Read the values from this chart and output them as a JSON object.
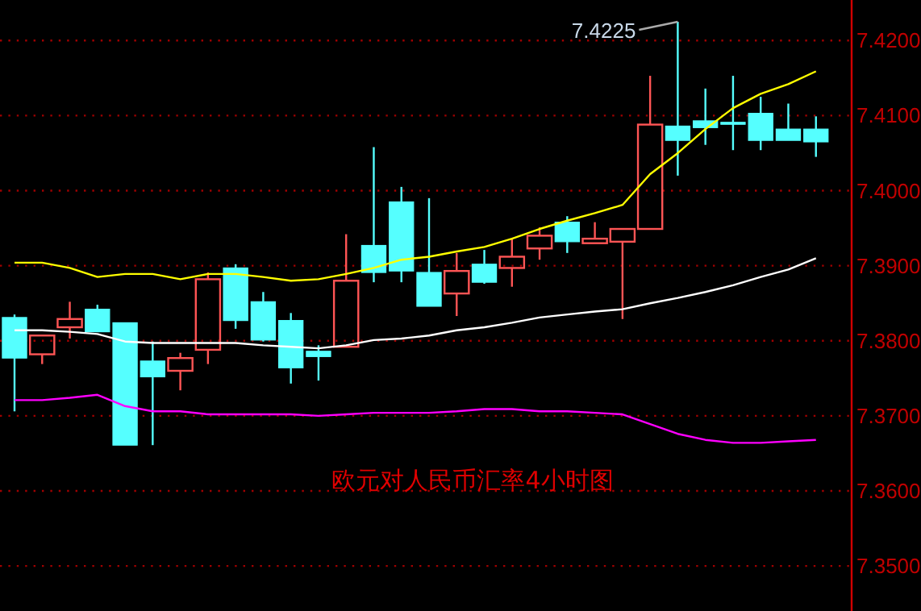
{
  "chart_data": {
    "type": "candlestick",
    "title": "欧元对人民币汇率4小时图",
    "categories": [
      null,
      null,
      null,
      null,
      null,
      null,
      null,
      null,
      null,
      null,
      null,
      null,
      null,
      null,
      null,
      null,
      null,
      null,
      null,
      null,
      null,
      null,
      null,
      null,
      null,
      null,
      null,
      null,
      null,
      null
    ],
    "ohlc": [
      [
        7.3831,
        7.3835,
        7.3706,
        7.3777
      ],
      [
        7.3782,
        7.3807,
        7.3769,
        7.3807
      ],
      [
        7.3818,
        7.3852,
        7.3803,
        7.3829
      ],
      [
        7.3842,
        7.3848,
        7.3812,
        7.3812
      ],
      [
        7.3824,
        7.3824,
        7.3661,
        7.3661
      ],
      [
        7.3773,
        7.3799,
        7.3661,
        7.3752
      ],
      [
        7.376,
        7.3784,
        7.3734,
        7.3777
      ],
      [
        7.3788,
        7.3891,
        7.3769,
        7.3882
      ],
      [
        7.3897,
        7.3902,
        7.3816,
        7.3827
      ],
      [
        7.3852,
        7.3865,
        7.3799,
        7.3801
      ],
      [
        7.3827,
        7.3837,
        7.3743,
        7.3764
      ],
      [
        7.3786,
        7.3794,
        7.3747,
        7.3779
      ],
      [
        7.3792,
        7.3942,
        7.3792,
        7.388
      ],
      [
        7.3927,
        7.4058,
        7.3878,
        7.3891
      ],
      [
        7.3985,
        7.4005,
        7.3878,
        7.3893
      ],
      [
        7.3891,
        7.399,
        7.3846,
        7.3846
      ],
      [
        7.3863,
        7.3917,
        7.3833,
        7.3893
      ],
      [
        7.3902,
        7.3921,
        7.3876,
        7.3878
      ],
      [
        7.3897,
        7.3936,
        7.3872,
        7.3912
      ],
      [
        7.3923,
        7.3951,
        7.3908,
        7.394
      ],
      [
        7.3958,
        7.3966,
        7.3917,
        7.3932
      ],
      [
        7.393,
        7.3958,
        7.393,
        7.3936
      ],
      [
        7.3932,
        7.3949,
        7.3829,
        7.3949
      ],
      [
        7.3949,
        7.4153,
        7.3949,
        7.4088
      ],
      [
        7.4086,
        7.4225,
        7.402,
        7.4067
      ],
      [
        7.4093,
        7.4136,
        7.4061,
        7.4084
      ],
      [
        7.4091,
        7.4153,
        7.4054,
        7.409
      ],
      [
        7.4103,
        7.4125,
        7.4054,
        7.4067
      ],
      [
        7.4082,
        7.4116,
        7.4067,
        7.4067
      ],
      [
        7.4082,
        7.4099,
        7.4045,
        7.4065
      ]
    ],
    "colors": [
      "#55ffff",
      "#ff5555",
      "#ff5555",
      "#55ffff",
      "#55ffff",
      "#55ffff",
      "#ff5555",
      "#ff5555",
      "#55ffff",
      "#55ffff",
      "#55ffff",
      "#55ffff",
      "#ff5555",
      "#55ffff",
      "#55ffff",
      "#55ffff",
      "#ff5555",
      "#55ffff",
      "#ff5555",
      "#ff5555",
      "#55ffff",
      "#ff5555",
      "#ff5555",
      "#ff5555",
      "#55ffff",
      "#55ffff",
      "#55ffff",
      "#55ffff",
      "#55ffff",
      "#55ffff"
    ],
    "series": [
      {
        "type": "line",
        "color": "#ffff00",
        "values": [
          7.3904,
          7.3904,
          7.3897,
          7.3885,
          7.3889,
          7.3889,
          7.3882,
          7.3889,
          7.3889,
          7.3885,
          7.388,
          7.3882,
          7.3889,
          7.3897,
          7.3908,
          7.3912,
          7.3919,
          7.3925,
          7.3936,
          7.3949,
          7.396,
          7.397,
          7.3981,
          7.4022,
          7.405,
          7.4082,
          7.411,
          7.4129,
          7.4142,
          7.4159
        ]
      },
      {
        "type": "line",
        "color": "#ffffff",
        "values": [
          7.3814,
          7.3814,
          7.3812,
          7.3809,
          7.3799,
          7.3797,
          7.3797,
          7.3797,
          7.3797,
          7.3794,
          7.3792,
          7.379,
          7.3794,
          7.3801,
          7.3803,
          7.3807,
          7.3814,
          7.3818,
          7.3824,
          7.3831,
          7.3835,
          7.3839,
          7.3842,
          7.385,
          7.3857,
          7.3865,
          7.3874,
          7.3885,
          7.3895,
          7.391
        ]
      },
      {
        "type": "line",
        "color": "#ff00ff",
        "values": [
          7.3721,
          7.3721,
          7.3724,
          7.3728,
          7.3713,
          7.3706,
          7.3706,
          7.3702,
          7.3702,
          7.3702,
          7.3702,
          7.37,
          7.3702,
          7.3704,
          7.3704,
          7.3704,
          7.3706,
          7.3709,
          7.3709,
          7.3706,
          7.3706,
          7.3704,
          7.3702,
          7.3689,
          7.3676,
          7.3668,
          7.3664,
          7.3664,
          7.3666,
          7.3668
        ]
      }
    ],
    "annotations": [
      "7.4225"
    ],
    "ylim": [
      7.344,
      7.4254
    ],
    "yticks": [
      {
        "value": 7.35,
        "label": "7.3500"
      },
      {
        "value": 7.36,
        "label": "7.3600"
      },
      {
        "value": 7.37,
        "label": "7.3700"
      },
      {
        "value": 7.38,
        "label": "7.3800"
      },
      {
        "value": 7.39,
        "label": "7.3900"
      },
      {
        "value": 7.4,
        "label": "7.4000"
      },
      {
        "value": 7.41,
        "label": "7.4100"
      },
      {
        "value": 7.42,
        "label": "7.4200"
      }
    ],
    "grid": "y"
  }
}
